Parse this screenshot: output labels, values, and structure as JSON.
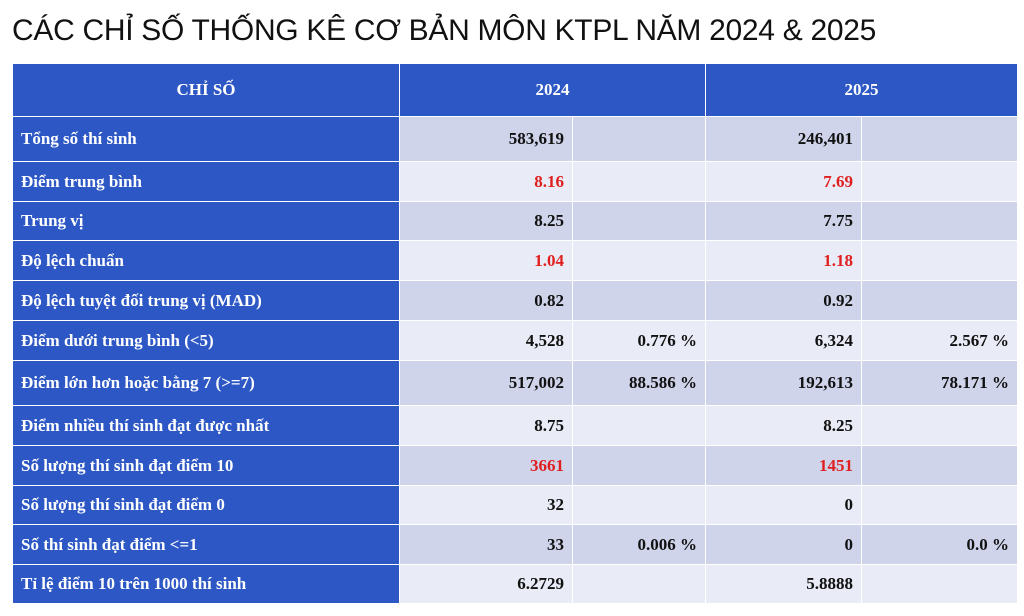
{
  "title": "CÁC CHỈ SỐ THỐNG KÊ CƠ BẢN MÔN KTPL NĂM 2024 & 2025",
  "header": {
    "metric": "CHỈ SỐ",
    "y2024": "2024",
    "y2025": "2025"
  },
  "colors": {
    "header_bg": "#2d57c4",
    "row_odd": "#cfd4eb",
    "row_even": "#e9ebf6",
    "highlight": "#e02020"
  },
  "rows": [
    {
      "label": "Tổng số thí sinh",
      "v2024": "583,619",
      "p2024": "",
      "v2025": "246,401",
      "p2025": "",
      "red": false
    },
    {
      "label": "Điểm trung bình",
      "v2024": "8.16",
      "p2024": "",
      "v2025": "7.69",
      "p2025": "",
      "red": true
    },
    {
      "label": "Trung vị",
      "v2024": "8.25",
      "p2024": "",
      "v2025": "7.75",
      "p2025": "",
      "red": false
    },
    {
      "label": "Độ lệch chuẩn",
      "v2024": "1.04",
      "p2024": "",
      "v2025": "1.18",
      "p2025": "",
      "red": true
    },
    {
      "label": "Độ lệch tuyệt đối trung vị (MAD)",
      "v2024": "0.82",
      "p2024": "",
      "v2025": "0.92",
      "p2025": "",
      "red": false
    },
    {
      "label": "Điểm dưới trung bình (<5)",
      "v2024": "4,528",
      "p2024": "0.776 %",
      "v2025": "6,324",
      "p2025": "2.567 %",
      "red": false
    },
    {
      "label": "Điểm lớn hơn hoặc bằng 7 (>=7)",
      "v2024": "517,002",
      "p2024": "88.586 %",
      "v2025": "192,613",
      "p2025": "78.171 %",
      "red": false
    },
    {
      "label": "Điểm nhiều thí sinh đạt được nhất",
      "v2024": "8.75",
      "p2024": "",
      "v2025": "8.25",
      "p2025": "",
      "red": false
    },
    {
      "label": "Số lượng thí sinh đạt điểm 10",
      "v2024": "3661",
      "p2024": "",
      "v2025": "1451",
      "p2025": "",
      "red": true
    },
    {
      "label": "Số lượng thí sinh đạt điểm 0",
      "v2024": "32",
      "p2024": "",
      "v2025": "0",
      "p2025": "",
      "red": false
    },
    {
      "label": "Số thí sinh đạt điểm <=1",
      "v2024": "33",
      "p2024": "0.006 %",
      "v2025": "0",
      "p2025": "0.0 %",
      "red": false
    },
    {
      "label": "Tỉ lệ điểm 10 trên 1000 thí sinh",
      "v2024": "6.2729",
      "p2024": "",
      "v2025": "5.8888",
      "p2025": "",
      "red": false
    }
  ]
}
